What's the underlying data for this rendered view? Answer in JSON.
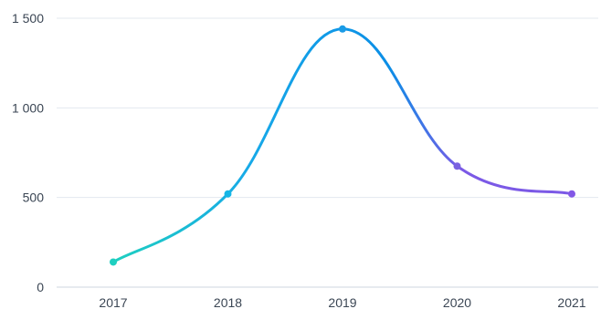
{
  "chart_data": {
    "type": "line",
    "title": "",
    "xlabel": "",
    "ylabel": "",
    "categories": [
      "2017",
      "2018",
      "2019",
      "2020",
      "2021"
    ],
    "series": [
      {
        "values": [
          140,
          520,
          1440,
          675,
          520
        ]
      }
    ],
    "ylim": [
      0,
      1500
    ],
    "yticks": [
      0,
      500,
      1000,
      1500
    ],
    "ytick_labels": [
      "0",
      "500",
      "1 000",
      "1 500"
    ],
    "grid": true,
    "legend": "none",
    "gradient_colors": [
      "#1ecfc0",
      "#17a9e8",
      "#0b8ee6",
      "#7b59e6"
    ],
    "point_colors": [
      "#1ecfc0",
      "#15b6e6",
      "#1a9be6",
      "#7a62e0",
      "#8257e6"
    ],
    "grid_color": "#e3e8ef",
    "label_color": "#3b4654"
  }
}
